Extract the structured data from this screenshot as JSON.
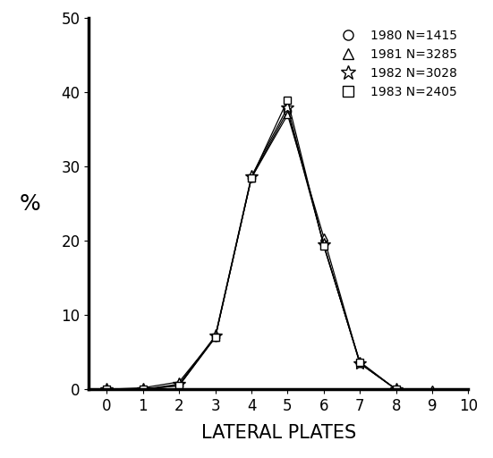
{
  "chart_data": {
    "type": "line",
    "x": [
      0,
      1,
      2,
      3,
      4,
      5,
      6,
      7,
      8,
      9
    ],
    "series": [
      {
        "name": "1980 N=1415",
        "color": "#000000",
        "marker": "circle",
        "line_style": "solid",
        "values": [
          0,
          0,
          0.5,
          7,
          28.5,
          37.5,
          19.5,
          3.5,
          0,
          null
        ]
      },
      {
        "name": "1981 N=3285",
        "color": "#000000",
        "marker": "triangle",
        "line_style": "solid",
        "values": [
          0,
          0.2,
          1,
          7,
          28.5,
          37,
          20.5,
          3.5,
          0,
          0
        ]
      },
      {
        "name": "1982 N=3028",
        "color": "#000000",
        "marker": "star",
        "line_style": "solid",
        "values": [
          0,
          0,
          0.7,
          7.2,
          28.7,
          38,
          19.5,
          3.5,
          0,
          null
        ]
      },
      {
        "name": "1983 N=2405",
        "color": "#000000",
        "marker": "square",
        "line_style": "solid",
        "values": [
          0,
          0,
          0.5,
          7,
          28.5,
          39,
          19.3,
          3.7,
          0,
          null
        ]
      }
    ],
    "x_label": "LATERAL PLATES",
    "y_label": "%",
    "xlim": [
      -0.5,
      10
    ],
    "ylim": [
      0,
      50
    ],
    "xticks": [
      0,
      1,
      2,
      3,
      4,
      5,
      6,
      7,
      8,
      9,
      10
    ],
    "yticks": [
      0,
      10,
      20,
      30,
      40,
      50
    ],
    "legend": "upper right",
    "grid": false
  }
}
